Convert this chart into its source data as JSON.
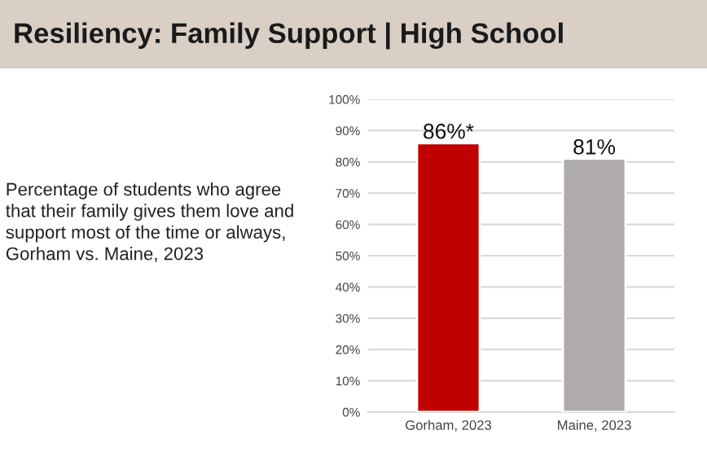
{
  "chart_data": {
    "type": "bar",
    "title": "Resiliency: Family Support | High School",
    "annotations": [
      "Percentage of students who agree that their family gives them love and support most of the time or always, Gorham vs. Maine, 2023"
    ],
    "categories": [
      "Gorham, 2023",
      "Maine, 2023"
    ],
    "values": [
      86,
      81
    ],
    "colors": [
      "#c00000",
      "#afabab"
    ],
    "value_labels": [
      "86%*",
      "81%"
    ],
    "ylim": [
      0,
      100
    ],
    "yticks": [
      {
        "value": 0,
        "label": "0%"
      },
      {
        "value": 10,
        "label": "10%"
      },
      {
        "value": 20,
        "label": "20%"
      },
      {
        "value": 30,
        "label": "30%"
      },
      {
        "value": 40,
        "label": "40%"
      },
      {
        "value": 50,
        "label": "50%"
      },
      {
        "value": 60,
        "label": "60%"
      },
      {
        "value": 70,
        "label": "70%"
      },
      {
        "value": 80,
        "label": "80%"
      },
      {
        "value": 90,
        "label": "90%"
      },
      {
        "value": 100,
        "label": "100%"
      }
    ],
    "grid": "y",
    "legend": false
  }
}
